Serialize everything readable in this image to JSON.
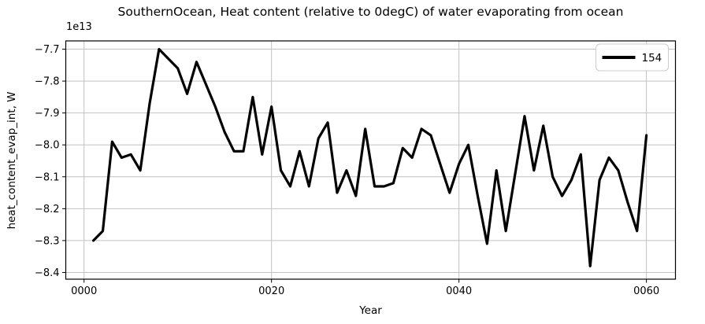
{
  "chart_data": {
    "type": "line",
    "title": "SouthernOcean, Heat content (relative to 0degC) of water evaporating from ocean",
    "xlabel": "Year",
    "ylabel": "heat_content_evap_int, W",
    "offset_text": "1e13",
    "y_unit": "W",
    "y_scale_note": "y values are in units of 1e13 W",
    "grid": true,
    "xlim": [
      -1.95,
      63.1
    ],
    "ylim": [
      -8.421,
      -7.674
    ],
    "x_ticks": [
      {
        "value": 0,
        "label": "0000"
      },
      {
        "value": 20,
        "label": "0020"
      },
      {
        "value": 40,
        "label": "0040"
      },
      {
        "value": 60,
        "label": "0060"
      }
    ],
    "y_ticks": [
      {
        "value": -7.7,
        "label": "−7.7"
      },
      {
        "value": -7.8,
        "label": "−7.8"
      },
      {
        "value": -7.9,
        "label": "−7.9"
      },
      {
        "value": -8.0,
        "label": "−8.0"
      },
      {
        "value": -8.1,
        "label": "−8.1"
      },
      {
        "value": -8.2,
        "label": "−8.2"
      },
      {
        "value": -8.3,
        "label": "−8.3"
      },
      {
        "value": -8.4,
        "label": "−8.4"
      }
    ],
    "legend": {
      "position": "upper right",
      "entries": [
        "154"
      ]
    },
    "series": [
      {
        "name": "154",
        "color": "#000000",
        "linewidth": 3.2,
        "x": [
          1,
          2,
          3,
          4,
          5,
          6,
          7,
          8,
          9,
          10,
          11,
          12,
          13,
          14,
          15,
          16,
          17,
          18,
          19,
          20,
          21,
          22,
          23,
          24,
          25,
          26,
          27,
          28,
          29,
          30,
          31,
          32,
          33,
          34,
          35,
          36,
          37,
          38,
          39,
          40,
          41,
          42,
          43,
          44,
          45,
          46,
          47,
          48,
          49,
          50,
          51,
          52,
          53,
          54,
          55,
          56,
          57,
          58,
          59,
          60
        ],
        "values": [
          -8.3,
          -8.27,
          -7.99,
          -8.04,
          -8.03,
          -8.08,
          -7.87,
          -7.7,
          -7.73,
          -7.76,
          -7.84,
          -7.74,
          -7.81,
          -7.88,
          -7.96,
          -8.02,
          -8.02,
          -7.85,
          -8.03,
          -7.88,
          -8.08,
          -8.13,
          -8.02,
          -8.13,
          -7.98,
          -7.93,
          -8.15,
          -8.08,
          -8.16,
          -7.95,
          -8.13,
          -8.13,
          -8.12,
          -8.01,
          -8.04,
          -7.95,
          -7.97,
          -8.06,
          -8.15,
          -8.06,
          -8.0,
          -8.16,
          -8.31,
          -8.08,
          -8.27,
          -8.09,
          -7.91,
          -8.08,
          -7.94,
          -8.1,
          -8.16,
          -8.11,
          -8.03,
          -8.38,
          -8.11,
          -8.04,
          -8.08,
          -8.18,
          -8.27,
          -7.97
        ]
      }
    ],
    "style": {
      "grid_color": "#c2c2c2",
      "spine_color": "#000000",
      "legend_border_color": "#cccccc",
      "legend_bg_color": "#ffffff"
    }
  }
}
